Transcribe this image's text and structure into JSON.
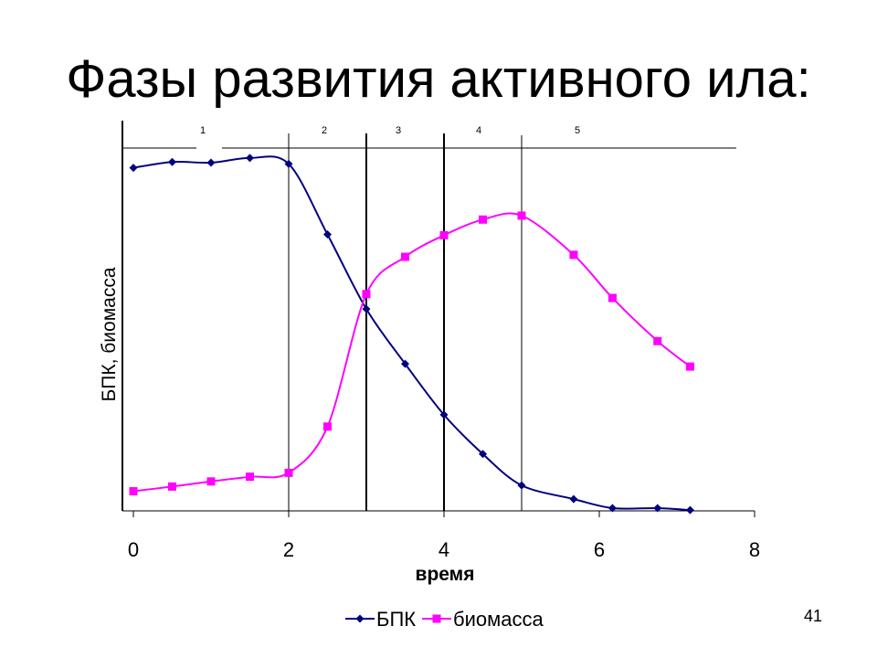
{
  "slide": {
    "title": "Фазы развития активного ила:",
    "number": "41"
  },
  "colors": {
    "bpk": "#000080",
    "biomass": "#ff00ff",
    "axis": "#000000"
  },
  "chart_data": {
    "type": "line",
    "title": "Фазы развития активного ила:",
    "xlabel": "время",
    "ylabel": "БПК, биомасса",
    "xlim": [
      0,
      8
    ],
    "xticks": [
      0,
      2,
      4,
      6,
      8
    ],
    "ylim": [
      0,
      100
    ],
    "y_tick_labels": false,
    "grid": false,
    "legend": "bottom",
    "phases": {
      "labels": [
        "1",
        "2",
        "3",
        "4",
        "5"
      ],
      "boundaries": [
        2,
        3,
        4,
        5
      ]
    },
    "series": [
      {
        "name": "БПК",
        "marker": "diamond",
        "x": [
          0,
          0.5,
          1,
          1.5,
          2,
          2.5,
          3,
          3.5,
          4,
          4.5,
          5,
          5.67,
          6.17,
          6.75,
          7.17
        ],
        "y": [
          87.5,
          89,
          88.8,
          90,
          88.5,
          70.5,
          51.5,
          37.5,
          24.5,
          14.5,
          6.5,
          3,
          0.7,
          0.7,
          0.2
        ]
      },
      {
        "name": "биомасса",
        "marker": "square",
        "x": [
          0,
          0.5,
          1,
          1.5,
          2,
          2.5,
          3,
          3.5,
          4,
          4.5,
          5,
          5.67,
          6.17,
          6.75,
          7.17
        ],
        "y": [
          5,
          6.2,
          7.5,
          8.7,
          9.7,
          21.5,
          55.3,
          64.8,
          70.3,
          74.3,
          75.3,
          65.3,
          54.3,
          43.3,
          36.8
        ]
      }
    ]
  }
}
